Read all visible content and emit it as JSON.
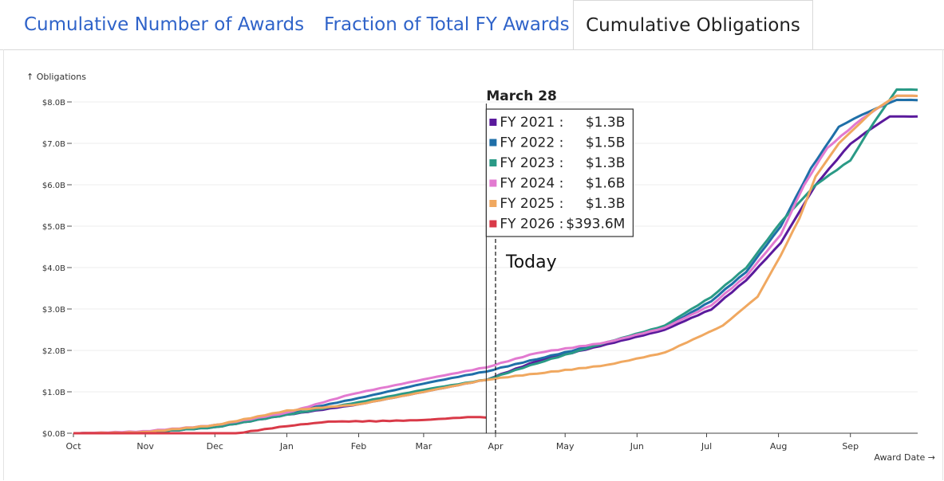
{
  "tabs": [
    {
      "label": "Cumulative Number of Awards",
      "active": false
    },
    {
      "label": "Fraction of Total FY Awards",
      "active": false
    },
    {
      "label": "Cumulative Obligations",
      "active": true
    }
  ],
  "chart_data": {
    "type": "line",
    "title": "",
    "ylabel": "↑ Obligations",
    "xlabel": "Award Date →",
    "ylim": [
      0,
      8.3
    ],
    "y_ticks": [
      0,
      1,
      2,
      3,
      4,
      5,
      6,
      7,
      8
    ],
    "y_tick_labels": [
      "$0.0B",
      "$1.0B",
      "$2.0B",
      "$3.0B",
      "$4.0B",
      "$5.0B",
      "$6.0B",
      "$7.0B",
      "$8.0B"
    ],
    "x_ticks": [
      {
        "label": "Oct",
        "day": 0
      },
      {
        "label": "Nov",
        "day": 31
      },
      {
        "label": "Dec",
        "day": 61
      },
      {
        "label": "Jan",
        "day": 92
      },
      {
        "label": "Feb",
        "day": 123
      },
      {
        "label": "Mar",
        "day": 151
      },
      {
        "label": "Apr",
        "day": 182
      },
      {
        "label": "May",
        "day": 212
      },
      {
        "label": "Jun",
        "day": 243
      },
      {
        "label": "Jul",
        "day": 273
      },
      {
        "label": "Aug",
        "day": 304
      },
      {
        "label": "Sep",
        "day": 335
      }
    ],
    "x_range_days": [
      0,
      364
    ],
    "hover": {
      "label": "March 28",
      "day": 178
    },
    "today": {
      "label": "Today",
      "day": 182
    },
    "tooltip_rows": [
      {
        "label": "FY 2021 :",
        "value": "$1.3B",
        "color": "#5a1a9c"
      },
      {
        "label": "FY 2022 :",
        "value": "$1.5B",
        "color": "#1f6fa8"
      },
      {
        "label": "FY 2023 :",
        "value": "$1.3B",
        "color": "#2a9a86"
      },
      {
        "label": "FY 2024 :",
        "value": "$1.6B",
        "color": "#e27ad0"
      },
      {
        "label": "FY 2025 :",
        "value": "$1.3B",
        "color": "#f0a860"
      },
      {
        "label": "FY 2026 :",
        "value": "$393.6M",
        "color": "#d93a48"
      }
    ],
    "series": [
      {
        "name": "FY 2021",
        "color": "#5a1a9c",
        "points": [
          [
            0,
            0
          ],
          [
            30,
            0.02
          ],
          [
            61,
            0.15
          ],
          [
            92,
            0.45
          ],
          [
            123,
            0.7
          ],
          [
            151,
            1.0
          ],
          [
            178,
            1.3
          ],
          [
            200,
            1.75
          ],
          [
            230,
            2.15
          ],
          [
            255,
            2.5
          ],
          [
            275,
            3.0
          ],
          [
            290,
            3.7
          ],
          [
            305,
            4.6
          ],
          [
            320,
            6.0
          ],
          [
            335,
            7.0
          ],
          [
            345,
            7.4
          ],
          [
            352,
            7.65
          ],
          [
            364,
            7.65
          ]
        ]
      },
      {
        "name": "FY 2022",
        "color": "#1f6fa8",
        "points": [
          [
            0,
            0
          ],
          [
            30,
            0.03
          ],
          [
            61,
            0.2
          ],
          [
            92,
            0.5
          ],
          [
            123,
            0.85
          ],
          [
            151,
            1.2
          ],
          [
            178,
            1.5
          ],
          [
            200,
            1.8
          ],
          [
            230,
            2.2
          ],
          [
            255,
            2.55
          ],
          [
            275,
            3.2
          ],
          [
            290,
            3.9
          ],
          [
            305,
            5.0
          ],
          [
            318,
            6.4
          ],
          [
            330,
            7.4
          ],
          [
            340,
            7.7
          ],
          [
            355,
            8.05
          ],
          [
            364,
            8.05
          ]
        ]
      },
      {
        "name": "FY 2023",
        "color": "#2a9a86",
        "points": [
          [
            0,
            0
          ],
          [
            30,
            0.02
          ],
          [
            61,
            0.15
          ],
          [
            92,
            0.45
          ],
          [
            123,
            0.75
          ],
          [
            151,
            1.05
          ],
          [
            178,
            1.3
          ],
          [
            200,
            1.7
          ],
          [
            230,
            2.2
          ],
          [
            255,
            2.6
          ],
          [
            275,
            3.3
          ],
          [
            290,
            4.0
          ],
          [
            305,
            5.1
          ],
          [
            320,
            6.0
          ],
          [
            335,
            6.6
          ],
          [
            345,
            7.5
          ],
          [
            355,
            8.3
          ],
          [
            364,
            8.3
          ]
        ]
      },
      {
        "name": "FY 2024",
        "color": "#e27ad0",
        "points": [
          [
            0,
            0
          ],
          [
            30,
            0.05
          ],
          [
            61,
            0.2
          ],
          [
            92,
            0.5
          ],
          [
            120,
            0.95
          ],
          [
            151,
            1.3
          ],
          [
            178,
            1.6
          ],
          [
            200,
            1.95
          ],
          [
            230,
            2.2
          ],
          [
            255,
            2.55
          ],
          [
            275,
            3.1
          ],
          [
            290,
            3.8
          ],
          [
            305,
            4.8
          ],
          [
            315,
            6.0
          ],
          [
            325,
            6.9
          ],
          [
            340,
            7.6
          ],
          [
            355,
            8.15
          ],
          [
            364,
            8.15
          ]
        ]
      },
      {
        "name": "FY 2025",
        "color": "#f0a860",
        "points": [
          [
            0,
            0
          ],
          [
            30,
            0.03
          ],
          [
            61,
            0.2
          ],
          [
            92,
            0.55
          ],
          [
            123,
            0.7
          ],
          [
            151,
            1.0
          ],
          [
            178,
            1.3
          ],
          [
            200,
            1.45
          ],
          [
            230,
            1.65
          ],
          [
            255,
            1.95
          ],
          [
            280,
            2.6
          ],
          [
            295,
            3.3
          ],
          [
            305,
            4.3
          ],
          [
            313,
            5.2
          ],
          [
            320,
            6.2
          ],
          [
            330,
            7.0
          ],
          [
            345,
            7.8
          ],
          [
            355,
            8.15
          ],
          [
            364,
            8.15
          ]
        ]
      },
      {
        "name": "FY 2026",
        "color": "#d93a48",
        "points": [
          [
            0,
            0
          ],
          [
            70,
            0.0
          ],
          [
            92,
            0.18
          ],
          [
            110,
            0.28
          ],
          [
            151,
            0.32
          ],
          [
            170,
            0.39
          ],
          [
            178,
            0.39
          ]
        ]
      }
    ]
  }
}
